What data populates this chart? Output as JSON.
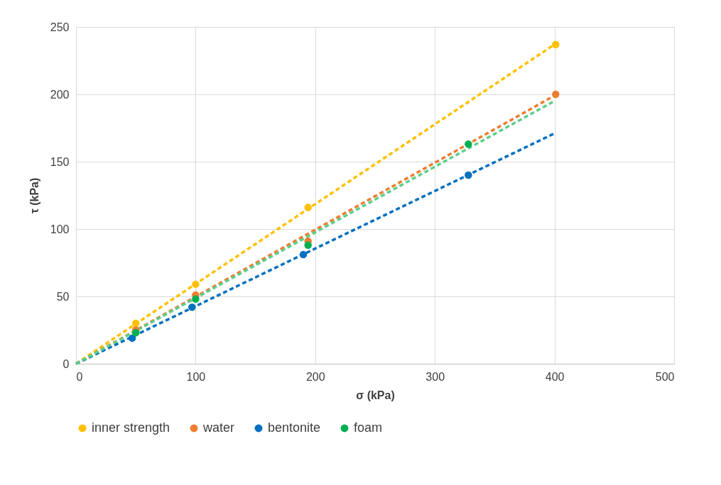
{
  "chart_data": {
    "type": "scatter",
    "xlabel": "σ (kPa)",
    "ylabel": "τ (kPa)",
    "xlim": [
      0,
      500
    ],
    "ylim": [
      0,
      250
    ],
    "xticks": [
      0,
      100,
      200,
      300,
      400,
      500
    ],
    "yticks": [
      0,
      50,
      100,
      150,
      200,
      250
    ],
    "grid": true,
    "legend": "bottom",
    "marker": "circle",
    "series": [
      {
        "name": "inner strength",
        "color": "#ffc000",
        "x": [
          50,
          100,
          194,
          401
        ],
        "values": [
          30,
          59,
          116,
          237
        ]
      },
      {
        "name": "water",
        "color": "#ed7d31",
        "x": [
          50,
          100,
          194,
          401
        ],
        "values": [
          25,
          51,
          91,
          200
        ]
      },
      {
        "name": "bentonite",
        "color": "#0070c0",
        "x": [
          47,
          97,
          190,
          328
        ],
        "values": [
          19,
          42,
          81,
          140
        ]
      },
      {
        "name": "foam",
        "color": "#00b050",
        "x": [
          50,
          100,
          194,
          328
        ],
        "values": [
          23,
          48,
          88,
          163
        ]
      },
      {
        "type": "line",
        "line_style": "dashed",
        "marker": "none",
        "color": "#ffc000",
        "x": [
          0,
          400
        ],
        "values": [
          0,
          237
        ]
      },
      {
        "type": "line",
        "line_style": "dashed",
        "marker": "none",
        "color": "#ed7d31",
        "x": [
          0,
          400
        ],
        "values": [
          0,
          199
        ]
      },
      {
        "type": "line",
        "line_style": "dashed",
        "marker": "none",
        "color": "#0070c0",
        "x": [
          0,
          400
        ],
        "values": [
          0,
          171
        ]
      },
      {
        "type": "line",
        "line_style": "dashed",
        "marker": "none",
        "color": "#5ccf8a",
        "x": [
          0,
          400
        ],
        "values": [
          0,
          195
        ]
      }
    ]
  }
}
